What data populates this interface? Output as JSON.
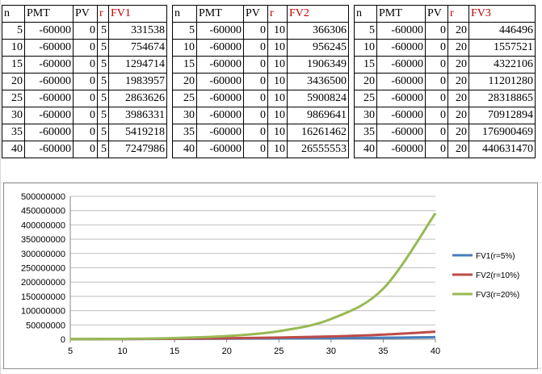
{
  "tables": [
    {
      "headers": [
        "n",
        "PMT",
        "PV",
        "r",
        "FV1"
      ],
      "rows": [
        [
          "5",
          "-60000",
          "0",
          "5",
          "331538"
        ],
        [
          "10",
          "-60000",
          "0",
          "5",
          "754674"
        ],
        [
          "15",
          "-60000",
          "0",
          "5",
          "1294714"
        ],
        [
          "20",
          "-60000",
          "0",
          "5",
          "1983957"
        ],
        [
          "25",
          "-60000",
          "0",
          "5",
          "2863626"
        ],
        [
          "30",
          "-60000",
          "0",
          "5",
          "3986331"
        ],
        [
          "35",
          "-60000",
          "0",
          "5",
          "5419218"
        ],
        [
          "40",
          "-60000",
          "0",
          "5",
          "7247986"
        ]
      ]
    },
    {
      "headers": [
        "n",
        "PMT",
        "PV",
        "r",
        "FV2"
      ],
      "rows": [
        [
          "5",
          "-60000",
          "0",
          "10",
          "366306"
        ],
        [
          "10",
          "-60000",
          "0",
          "10",
          "956245"
        ],
        [
          "15",
          "-60000",
          "0",
          "10",
          "1906349"
        ],
        [
          "20",
          "-60000",
          "0",
          "10",
          "3436500"
        ],
        [
          "25",
          "-60000",
          "0",
          "10",
          "5900824"
        ],
        [
          "30",
          "-60000",
          "0",
          "10",
          "9869641"
        ],
        [
          "35",
          "-60000",
          "0",
          "10",
          "16261462"
        ],
        [
          "40",
          "-60000",
          "0",
          "10",
          "26555553"
        ]
      ]
    },
    {
      "headers": [
        "n",
        "PMT",
        "PV",
        "r",
        "FV3"
      ],
      "rows": [
        [
          "5",
          "-60000",
          "0",
          "20",
          "446496"
        ],
        [
          "10",
          "-60000",
          "0",
          "20",
          "1557521"
        ],
        [
          "15",
          "-60000",
          "0",
          "20",
          "4322106"
        ],
        [
          "20",
          "-60000",
          "0",
          "20",
          "11201280"
        ],
        [
          "25",
          "-60000",
          "0",
          "20",
          "28318865"
        ],
        [
          "30",
          "-60000",
          "0",
          "20",
          "70912894"
        ],
        [
          "35",
          "-60000",
          "0",
          "20",
          "176900469"
        ],
        [
          "40",
          "-60000",
          "0",
          "20",
          "440631470"
        ]
      ]
    }
  ],
  "colors": {
    "header_red": "#c00000",
    "fv1": "#4a7ebb",
    "fv2": "#be4b48",
    "fv3": "#98b954"
  },
  "chart_data": {
    "type": "line",
    "x": [
      5,
      10,
      15,
      20,
      25,
      30,
      35,
      40
    ],
    "xlim": [
      5,
      40
    ],
    "xticks": [
      "5",
      "10",
      "15",
      "20",
      "25",
      "30",
      "35",
      "40"
    ],
    "ylim": [
      0,
      500000000
    ],
    "yticks": [
      "0",
      "50000000",
      "100000000",
      "150000000",
      "200000000",
      "250000000",
      "300000000",
      "350000000",
      "400000000",
      "450000000",
      "500000000"
    ],
    "grid": true,
    "legend_position": "right",
    "series": [
      {
        "name": "FV1(r=5%)",
        "values": [
          331538,
          754674,
          1294714,
          1983957,
          2863626,
          3986331,
          5419218,
          7247986
        ]
      },
      {
        "name": "FV2(r=10%)",
        "values": [
          366306,
          956245,
          1906349,
          3436500,
          5900824,
          9869641,
          16261462,
          26555553
        ]
      },
      {
        "name": "FV3(r=20%)",
        "values": [
          446496,
          1557521,
          4322106,
          11201280,
          28318865,
          70912894,
          176900469,
          440631470
        ]
      }
    ]
  }
}
